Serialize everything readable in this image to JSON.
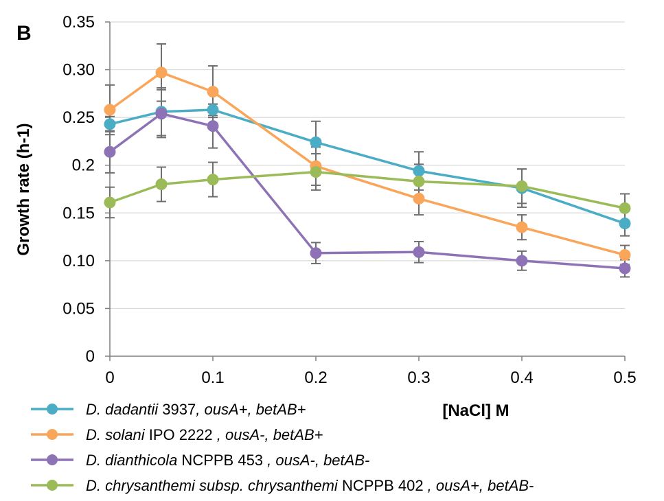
{
  "panel_label": "B",
  "chart_data": {
    "type": "line",
    "xlabel": "[NaCl] M",
    "ylabel": "Growth rate (h-1)",
    "x": [
      0,
      0.05,
      0.1,
      0.2,
      0.3,
      0.4,
      0.5
    ],
    "xlim": [
      0,
      0.5
    ],
    "ylim": [
      0,
      0.35
    ],
    "x_ticks": [
      0,
      0.1,
      0.2,
      0.3,
      0.4,
      0.5
    ],
    "x_tick_labels": [
      "0",
      "0.1",
      "0.2",
      "0.3",
      "0.4",
      "0.5"
    ],
    "y_ticks": [
      0,
      0.05,
      0.1,
      0.15,
      0.2,
      0.25,
      0.3,
      0.35
    ],
    "y_tick_labels": [
      "0",
      "0.05",
      "0.10",
      "0.15",
      "0.2",
      "0.25",
      "0.30",
      "0.35"
    ],
    "grid": "horizontal",
    "legend_position": "bottom-left",
    "series": [
      {
        "name": "D. dadantii 3937, ousA+, betAB+",
        "legend_parts": [
          {
            "text": "D. dadantii",
            "italic": true
          },
          {
            "text": " 3937",
            "italic": false
          },
          {
            "text": ", ousA+, betAB+",
            "italic": true
          }
        ],
        "color": "#4bacc6",
        "values": [
          0.243,
          0.256,
          0.258,
          0.224,
          0.194,
          0.176,
          0.139
        ],
        "errors": [
          0.008,
          0.025,
          0.006,
          0.022,
          0.02,
          0.02,
          0.013
        ]
      },
      {
        "name": "D. solani IPO 2222 , ousA-, betAB+",
        "legend_parts": [
          {
            "text": "D. solani",
            "italic": true
          },
          {
            "text": " IPO 2222 ",
            "italic": false
          },
          {
            "text": ", ousA-, betAB+",
            "italic": true
          }
        ],
        "color": "#f9a65a",
        "values": [
          0.258,
          0.297,
          0.277,
          0.199,
          0.165,
          0.135,
          0.106
        ],
        "errors": [
          0.026,
          0.03,
          0.027,
          0.02,
          0.017,
          0.013,
          0.01
        ]
      },
      {
        "name": "D. dianthicola NCPPB 453 , ousA-, betAB-",
        "legend_parts": [
          {
            "text": "D. dianthicola",
            "italic": true
          },
          {
            "text": " NCPPB 453 ",
            "italic": false
          },
          {
            "text": ", ousA-, betAB-",
            "italic": true
          }
        ],
        "color": "#8e72b6",
        "values": [
          0.214,
          0.254,
          0.241,
          0.108,
          0.109,
          0.1,
          0.092
        ],
        "errors": [
          0.022,
          0.025,
          0.023,
          0.011,
          0.011,
          0.01,
          0.009
        ]
      },
      {
        "name": "D. chrysanthemi subsp. chrysanthemi NCPPB 402 , ousA+, betAB-",
        "legend_parts": [
          {
            "text": "D. chrysanthemi subsp. chrysanthemi",
            "italic": true
          },
          {
            "text": " NCPPB 402 ",
            "italic": false
          },
          {
            "text": ", ousA+, betAB-",
            "italic": true
          }
        ],
        "color": "#9bbb59",
        "values": [
          0.161,
          0.18,
          0.185,
          0.193,
          0.183,
          0.178,
          0.155
        ],
        "errors": [
          0.016,
          0.018,
          0.018,
          0.019,
          0.018,
          0.018,
          0.015
        ]
      }
    ]
  }
}
